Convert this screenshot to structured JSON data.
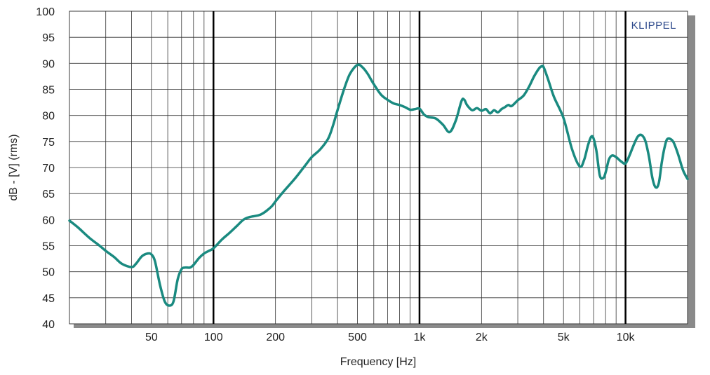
{
  "chart_data": {
    "type": "line",
    "xscale": "log",
    "xlim": [
      20,
      20000
    ],
    "ylim": [
      40,
      100
    ],
    "xlabel": "Frequency [Hz]",
    "ylabel": "dB - [V]  (rms)",
    "brand": "KLIPPEL",
    "grid": true,
    "y_ticks": [
      "40",
      "45",
      "50",
      "55",
      "60",
      "65",
      "70",
      "75",
      "80",
      "85",
      "90",
      "95",
      "100"
    ],
    "x_ticks": [
      {
        "value": 50,
        "label": "50"
      },
      {
        "value": 100,
        "label": "100"
      },
      {
        "value": 200,
        "label": "200"
      },
      {
        "value": 500,
        "label": "500"
      },
      {
        "value": 1000,
        "label": "1k"
      },
      {
        "value": 2000,
        "label": "2k"
      },
      {
        "value": 5000,
        "label": "5k"
      },
      {
        "value": 10000,
        "label": "10k"
      }
    ],
    "line_color": "#1a8a80",
    "series": [
      {
        "x": [
          20,
          22,
          25,
          28,
          30,
          33,
          36,
          40,
          42,
          45,
          48,
          50,
          52,
          55,
          58,
          61,
          64,
          67,
          70,
          73,
          77,
          80,
          85,
          90,
          95,
          100,
          110,
          120,
          130,
          140,
          150,
          170,
          190,
          200,
          220,
          250,
          280,
          300,
          330,
          360,
          380,
          400,
          430,
          460,
          500,
          530,
          560,
          600,
          650,
          700,
          750,
          800,
          850,
          900,
          950,
          1000,
          1050,
          1100,
          1200,
          1300,
          1400,
          1500,
          1600,
          1650,
          1700,
          1800,
          1900,
          2000,
          2100,
          2200,
          2300,
          2400,
          2500,
          2600,
          2700,
          2800,
          3000,
          3200,
          3400,
          3600,
          3800,
          3900,
          4000,
          4200,
          4500,
          5000,
          5500,
          6000,
          6300,
          6600,
          6900,
          7200,
          7500,
          7800,
          8000,
          8300,
          8600,
          9000,
          9500,
          10000,
          10500,
          11000,
          11500,
          12000,
          12500,
          13000,
          13500,
          14000,
          14500,
          15000,
          15500,
          16000,
          17000,
          18000,
          19000,
          20000
        ],
        "y": [
          59.8,
          58.5,
          56.5,
          55.0,
          54.0,
          52.8,
          51.5,
          50.9,
          51.5,
          53.0,
          53.5,
          53.3,
          52.0,
          47.5,
          44.3,
          43.5,
          44.3,
          48.5,
          50.5,
          50.8,
          50.8,
          51.3,
          52.6,
          53.5,
          54.0,
          54.5,
          56.2,
          57.5,
          58.8,
          60.0,
          60.5,
          61.0,
          62.4,
          63.5,
          65.5,
          68.0,
          70.5,
          72.0,
          73.5,
          75.5,
          78.0,
          81.0,
          85.0,
          88.0,
          89.7,
          89.2,
          88.0,
          86.0,
          84.0,
          83.0,
          82.3,
          82.0,
          81.6,
          81.1,
          81.2,
          81.3,
          80.2,
          79.7,
          79.4,
          78.2,
          76.8,
          79.0,
          82.8,
          83.0,
          82.0,
          81.0,
          81.4,
          80.9,
          81.2,
          80.4,
          81.0,
          80.6,
          81.2,
          81.6,
          82.0,
          81.8,
          82.9,
          83.8,
          85.5,
          87.5,
          89.0,
          89.4,
          89.3,
          87.0,
          83.5,
          79.5,
          73.5,
          70.2,
          71.5,
          74.5,
          76.0,
          73.5,
          68.5,
          68.0,
          69.0,
          71.5,
          72.3,
          72.0,
          71.2,
          70.8,
          72.5,
          74.5,
          76.0,
          76.2,
          75.0,
          72.0,
          68.0,
          66.2,
          67.0,
          71.0,
          74.0,
          75.5,
          75.0,
          72.5,
          69.5,
          67.8
        ]
      }
    ]
  }
}
